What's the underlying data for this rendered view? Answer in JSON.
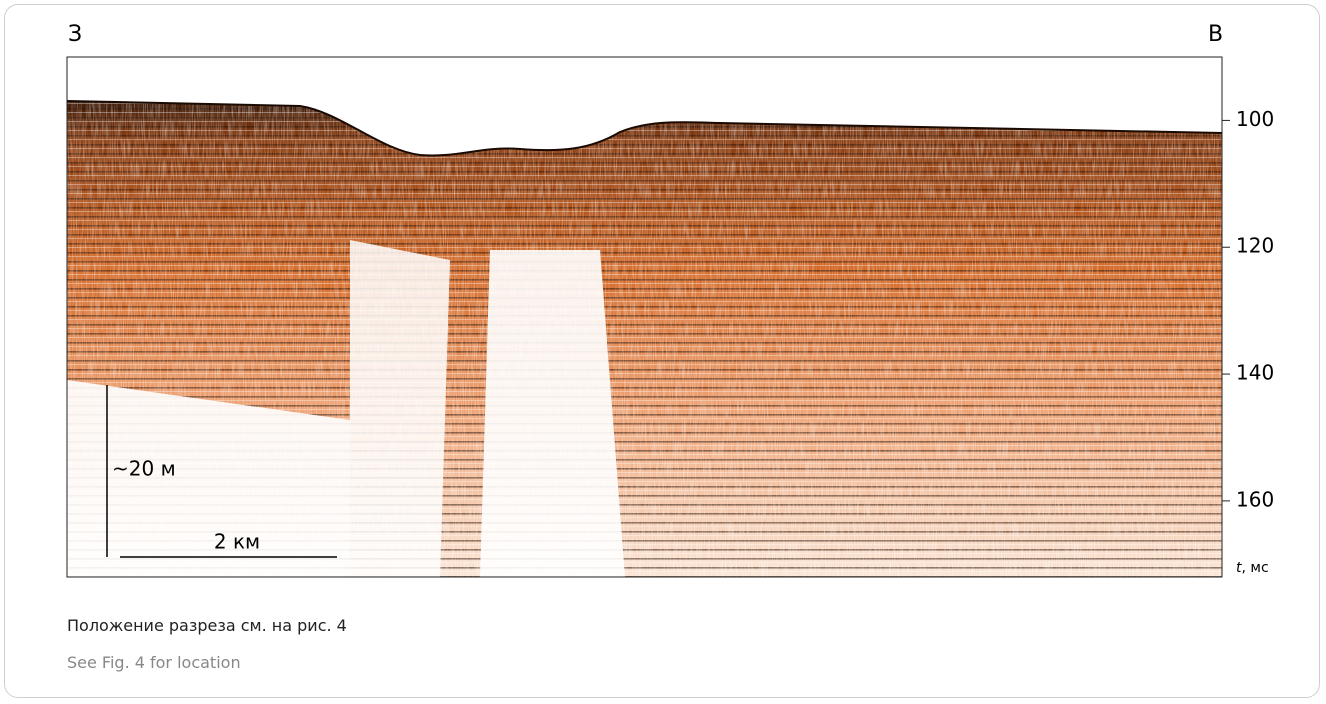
{
  "figure": {
    "labels": {
      "west": "З",
      "east": "В"
    },
    "axis": {
      "label_var": "t",
      "label_unit": ", мс",
      "ylim": [
        90,
        172
      ],
      "yticks": [
        100,
        120,
        140,
        160
      ]
    },
    "scale": {
      "vertical": "~20 м",
      "horizontal": "2 км"
    }
  },
  "caption": {
    "ru": "Положение разреза см. на рис. 4",
    "en": "See Fig. 4 for location"
  }
}
